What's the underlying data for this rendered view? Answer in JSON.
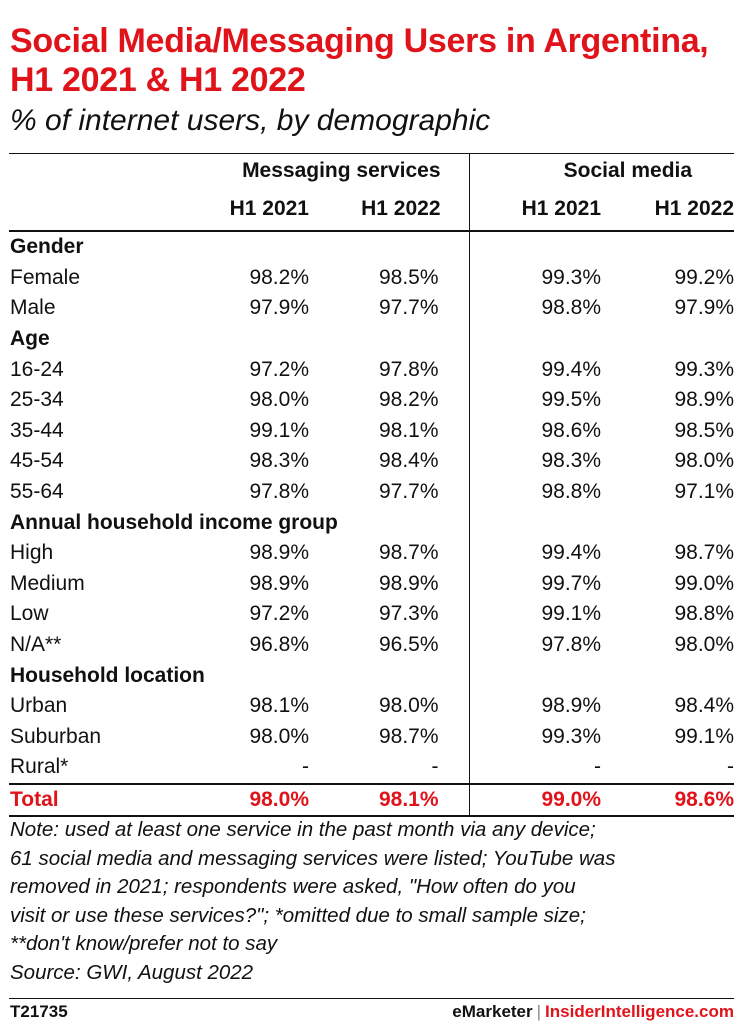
{
  "title": "Social Media/Messaging Users in Argentina, H1 2021 & H1 2022",
  "subtitle": "% of internet users, by demographic",
  "chart_data": {
    "type": "table",
    "column_groups": [
      "Messaging services",
      "Social media"
    ],
    "periods": [
      "H1 2021",
      "H1 2022",
      "H1 2021",
      "H1 2022"
    ],
    "rows": [
      {
        "label": "Gender",
        "section": true,
        "values": [
          "",
          "",
          "",
          ""
        ]
      },
      {
        "label": "Female",
        "values": [
          "98.2%",
          "98.5%",
          "99.3%",
          "99.2%"
        ]
      },
      {
        "label": "Male",
        "values": [
          "97.9%",
          "97.7%",
          "98.8%",
          "97.9%"
        ]
      },
      {
        "label": "Age",
        "section": true,
        "values": [
          "",
          "",
          "",
          ""
        ]
      },
      {
        "label": "16-24",
        "values": [
          "97.2%",
          "97.8%",
          "99.4%",
          "99.3%"
        ]
      },
      {
        "label": "25-34",
        "values": [
          "98.0%",
          "98.2%",
          "99.5%",
          "98.9%"
        ]
      },
      {
        "label": "35-44",
        "values": [
          "99.1%",
          "98.1%",
          "98.6%",
          "98.5%"
        ]
      },
      {
        "label": "45-54",
        "values": [
          "98.3%",
          "98.4%",
          "98.3%",
          "98.0%"
        ]
      },
      {
        "label": "55-64",
        "values": [
          "97.8%",
          "97.7%",
          "98.8%",
          "97.1%"
        ]
      },
      {
        "label": "Annual household income group",
        "section": true,
        "values": [
          "",
          "",
          "",
          ""
        ]
      },
      {
        "label": "High",
        "values": [
          "98.9%",
          "98.7%",
          "99.4%",
          "98.7%"
        ]
      },
      {
        "label": "Medium",
        "values": [
          "98.9%",
          "98.9%",
          "99.7%",
          "99.0%"
        ]
      },
      {
        "label": "Low",
        "values": [
          "97.2%",
          "97.3%",
          "99.1%",
          "98.8%"
        ]
      },
      {
        "label": "N/A**",
        "values": [
          "96.8%",
          "96.5%",
          "97.8%",
          "98.0%"
        ]
      },
      {
        "label": "Household location",
        "section": true,
        "values": [
          "",
          "",
          "",
          ""
        ]
      },
      {
        "label": "Urban",
        "values": [
          "98.1%",
          "98.0%",
          "98.9%",
          "98.4%"
        ]
      },
      {
        "label": "Suburban",
        "values": [
          "98.0%",
          "98.7%",
          "99.3%",
          "99.1%"
        ]
      },
      {
        "label": "Rural*",
        "values": [
          "-",
          "-",
          "-",
          "-"
        ]
      },
      {
        "label": "Total",
        "total": true,
        "values": [
          "98.0%",
          "98.1%",
          "99.0%",
          "98.6%"
        ]
      }
    ]
  },
  "note_lines": [
    "Note: used at least one service in the past month via any device;",
    "61 social media and messaging services were listed; YouTube was",
    "removed in 2021; respondents were asked, \"How often do you",
    "visit or use these services?\"; *omitted due to small sample size;",
    "**don't know/prefer not to say",
    "Source: GWI, August 2022"
  ],
  "footer": {
    "chart_id": "T21735",
    "brand_left": "eMarketer",
    "separator": "|",
    "brand_right": "InsiderIntelligence.com"
  }
}
